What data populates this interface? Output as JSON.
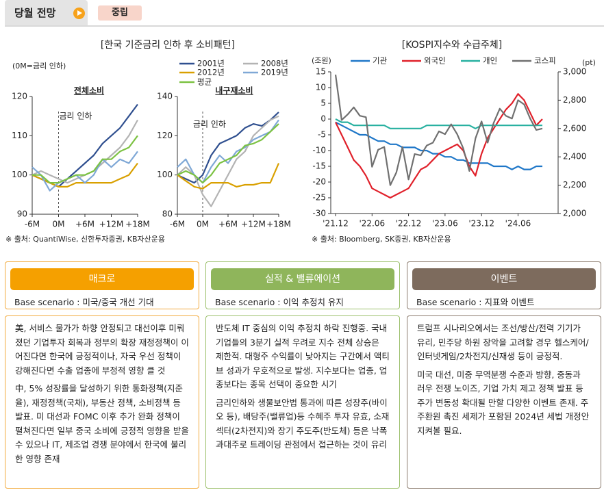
{
  "header": {
    "tab": "당월 전망",
    "badge": "중립"
  },
  "left_figure": {
    "title": "[한국 기준금리 인하 후 소비패턴]",
    "note": "(0M=금리 인하)",
    "source": "※ 출처: QuantiWise, 신한투자증권, KB자산운용"
  },
  "chart_data": [
    {
      "type": "line",
      "title": "전체소비",
      "x": [
        -6,
        -4,
        -2,
        0,
        2,
        4,
        6,
        8,
        10,
        12,
        14,
        16,
        18
      ],
      "xlim": [
        -6,
        18
      ],
      "xticks": [
        {
          "value": -6,
          "label": "-6M"
        },
        {
          "value": 0,
          "label": "0M"
        },
        {
          "value": 6,
          "label": "+6M"
        },
        {
          "value": 12,
          "label": "+12M"
        },
        {
          "value": 18,
          "label": "+18M"
        }
      ],
      "ylim": [
        90,
        120
      ],
      "yticks": [
        90,
        100,
        110,
        120
      ],
      "annotations": [
        {
          "text": "금리 인하",
          "x": 0
        }
      ],
      "series": [
        {
          "name": "2001년",
          "color": "#2f4f8f",
          "values": [
            100,
            99,
            98,
            97,
            99,
            101,
            103,
            105,
            108,
            110,
            112,
            115,
            118
          ]
        },
        {
          "name": "2008년",
          "color": "#b3b3b3",
          "values": [
            100,
            101,
            100,
            99,
            98,
            99,
            100,
            101,
            103,
            105,
            107,
            110,
            114
          ]
        },
        {
          "name": "2012년",
          "color": "#d9a000",
          "values": [
            100,
            99,
            98,
            97,
            97,
            98,
            98,
            98,
            98,
            98,
            99,
            100,
            103
          ]
        },
        {
          "name": "2019년",
          "color": "#7fa8d6",
          "values": [
            102,
            100,
            96,
            98,
            99,
            100,
            98,
            100,
            104,
            102,
            104,
            103,
            106
          ]
        },
        {
          "name": "평균",
          "color": "#7cc242",
          "values": [
            100,
            100,
            98,
            98,
            99,
            100,
            100,
            101,
            104,
            104,
            106,
            107,
            110
          ]
        }
      ]
    },
    {
      "type": "line",
      "title": "내구재소비",
      "x": [
        -6,
        -4,
        -2,
        0,
        2,
        4,
        6,
        8,
        10,
        12,
        14,
        16,
        18
      ],
      "xlim": [
        -6,
        18
      ],
      "xticks": [
        {
          "value": -6,
          "label": "-6M"
        },
        {
          "value": 0,
          "label": "0M"
        },
        {
          "value": 6,
          "label": "+6M"
        },
        {
          "value": 12,
          "label": "+12M"
        },
        {
          "value": 18,
          "label": "+18M"
        }
      ],
      "ylim": [
        80,
        140
      ],
      "yticks": [
        80,
        100,
        120,
        140
      ],
      "annotations": [
        {
          "text": "금리 인하",
          "x": 0
        }
      ],
      "series": [
        {
          "color": "#2f4f8f",
          "values": [
            100,
            98,
            96,
            100,
            110,
            116,
            118,
            120,
            124,
            126,
            125,
            128,
            132
          ]
        },
        {
          "color": "#b3b3b3",
          "values": [
            100,
            104,
            100,
            90,
            84,
            92,
            100,
            108,
            112,
            120,
            124,
            128,
            130
          ]
        },
        {
          "color": "#d9a000",
          "values": [
            100,
            97,
            94,
            93,
            96,
            96,
            96,
            94,
            95,
            95,
            96,
            96,
            106
          ]
        },
        {
          "color": "#7fa8d6",
          "values": [
            104,
            108,
            100,
            96,
            104,
            110,
            106,
            112,
            114,
            118,
            120,
            122,
            128
          ]
        },
        {
          "color": "#7cc242",
          "values": [
            100,
            102,
            100,
            96,
            100,
            106,
            108,
            110,
            115,
            116,
            118,
            122,
            126
          ]
        }
      ]
    },
    {
      "type": "line",
      "title": "[KOSPI지수와 수급주체]",
      "y_unit": "(조원)",
      "y2_unit": "(pt)",
      "source": "※ 출처: Bloomberg, SK증권, KB자산운용",
      "categories": [
        "'21.12",
        null,
        null,
        null,
        null,
        null,
        "'22.06",
        null,
        null,
        null,
        null,
        null,
        "'22.12",
        null,
        null,
        null,
        null,
        null,
        "'23.06",
        null,
        null,
        null,
        null,
        null,
        "'23.12",
        null,
        null,
        null,
        null,
        null,
        "'24.06",
        null,
        null,
        null,
        null
      ],
      "ylim": [
        -30,
        15
      ],
      "yticks": [
        15,
        10,
        5,
        0,
        -5,
        -10,
        -15,
        -20,
        -25,
        -30
      ],
      "y2lim": [
        2000,
        3000
      ],
      "y2ticks": [
        {
          "value": 3000,
          "label": "3,000"
        },
        {
          "value": 2800,
          "label": "2,800"
        },
        {
          "value": 2600,
          "label": "2,600"
        },
        {
          "value": 2400,
          "label": "2,400"
        },
        {
          "value": 2200,
          "label": "2,200"
        },
        {
          "value": 2000,
          "label": "2,000"
        }
      ],
      "series": [
        {
          "name": "기관",
          "color": "#1f77c8",
          "values": [
            -1,
            -2,
            -3,
            -4,
            -5,
            -5,
            -6,
            -7,
            -7,
            -8,
            -8,
            -9,
            -9,
            -9,
            -10,
            -10,
            -11,
            -11,
            -12,
            -12,
            -13,
            -13,
            -14,
            -14,
            -14,
            -14,
            -15,
            -15,
            -15,
            -16,
            -15,
            -16,
            -16,
            -15,
            -15
          ]
        },
        {
          "name": "외국인",
          "color": "#e0202a",
          "values": [
            -1,
            -5,
            -9,
            -13,
            -15,
            -18,
            -22,
            -23,
            -24,
            -25,
            -24,
            -23,
            -22,
            -19,
            -16,
            -15,
            -13,
            -11,
            -10,
            -9,
            -8,
            -10,
            -15,
            -18,
            -11,
            -6,
            -3,
            0,
            3,
            5,
            8,
            6,
            2,
            -2,
            0
          ]
        },
        {
          "name": "개인",
          "color": "#27b0a0",
          "values": [
            0,
            -1,
            -1,
            -2,
            -2,
            -2,
            -2,
            -2,
            -2,
            -3,
            -3,
            -3,
            -3,
            -3,
            -3,
            -2,
            -2,
            -2,
            -2,
            -2,
            -2,
            -2,
            -2,
            -3,
            -2,
            -2,
            -2,
            -2,
            -2,
            -2,
            -2,
            -2,
            -2,
            -2,
            -2
          ]
        },
        {
          "name": "코스피",
          "color": "#707070",
          "axis": "y2",
          "values": [
            2980,
            2660,
            2700,
            2750,
            2690,
            2680,
            2330,
            2450,
            2470,
            2200,
            2290,
            2470,
            2240,
            2420,
            2410,
            2480,
            2500,
            2580,
            2560,
            2630,
            2560,
            2460,
            2300,
            2530,
            2650,
            2500,
            2640,
            2740,
            2690,
            2670,
            2800,
            2770,
            2670,
            2590,
            2600
          ]
        }
      ]
    }
  ],
  "panels": [
    {
      "title": "매크로",
      "base": "Base scenario : 미국/중국 개선 기대",
      "paragraphs": [
        "美, 서비스 물가가 하향 안정되고 대선이후 미뤄졌던 기업투자 회복과 정부의 확장 재정정책이 이어진다면 한국에 긍정적이나, 자국 우선 정책이 강해진다면 수출 업종에 부정적 영향 클 것",
        "中, 5% 성장률을 달성하기 위한 통화정책(지준율), 재정정책(국채), 부동산 정책, 소비정책 등 발표. 미 대선과 FOMC 이후 추가 완화 정책이 펼쳐진다면 일부 중국 소비에 긍정적 영향을 받을 수 있으나 IT, 제조업 경쟁 분야에서 한국에 불리한 영향 존재"
      ]
    },
    {
      "title": "실적 & 밸류에이션",
      "base": "Base scenario : 이익 추정치 유지",
      "paragraphs": [
        "반도체 IT 중심의 이익 추정치 하락 진행중. 국내 기업들의 3분기 실적 우려로 지수 전체 상승은 제한적. 대형주 수익률이 낮아지는 구간에서 액티브 성과가 우호적으로 발생. 지수보다는 업종, 업종보다는 종목 선택이 중요한 시기",
        "금리인하와 생물보안법 통과에 따른 성장주(바이오 등), 배당주(밸류업)등 수혜주 투자 유효, 소재섹터(2차전지)와 장기 주도주(반도체) 등은 낙폭과대주로 트레이딩 관점에서 접근하는 것이 유리"
      ]
    },
    {
      "title": "이벤트",
      "base": "Base scenario : 지표와 이벤트",
      "paragraphs": [
        "트럼프 시나리오에서는 조선/방산/전력 기기가 유리, 민주당 하원 장악을 고려할 경우 헬스케어/ 인터넷게임/2차전지/신재생 등이 긍정적.",
        "미국 대선, 미중 무역분쟁 수준과 방향, 중동과 러우 전쟁 노이즈, 기업 가치 제고 정책 발표 등 주가 변동성 확대될 만할 다양한 이벤트 존재. 주주환원 촉진 세제가 포함된 2024년 세법 개정안 지켜볼 필요."
      ]
    }
  ]
}
